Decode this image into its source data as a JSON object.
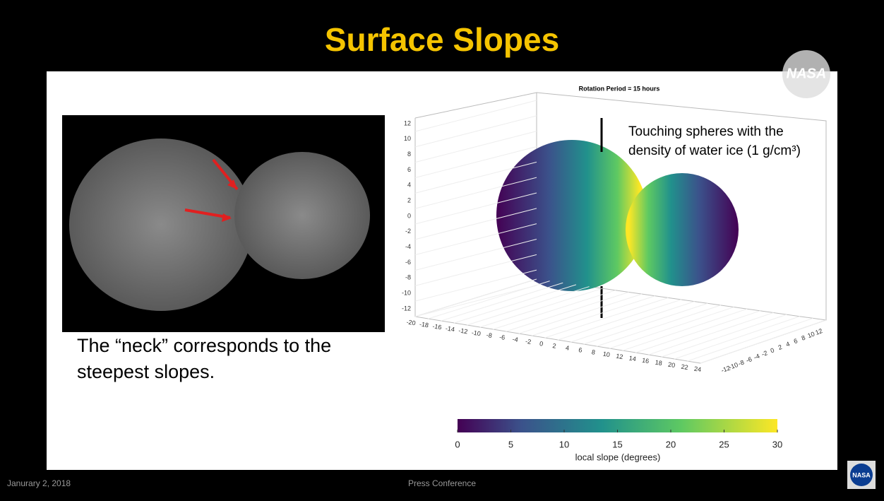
{
  "header": {
    "title": "Surface Slopes",
    "logo": "NASA"
  },
  "left": {
    "caption": [
      "The “neck” corresponds to the",
      "steepest slopes."
    ]
  },
  "plot": {
    "title": "Rotation Period = 15 hours",
    "annotation": [
      "Touching spheres with the",
      "density of water ice (1 g/cm³)"
    ],
    "zticks": [
      12,
      10,
      8,
      6,
      4,
      2,
      0,
      -2,
      -4,
      -6,
      -8,
      -10,
      -12
    ],
    "xticks": [
      -20,
      -18,
      -16,
      -14,
      -12,
      -10,
      -8,
      -6,
      -4,
      -2,
      0,
      2,
      4,
      6,
      8,
      10,
      12,
      14,
      16,
      18,
      20,
      22,
      24
    ],
    "yticks": [
      -12,
      -10,
      -8,
      -6,
      -4,
      -2,
      0,
      2,
      4,
      6,
      8,
      10,
      12
    ]
  },
  "colorbar": {
    "ticks": [
      0,
      5,
      10,
      15,
      20,
      25,
      30
    ],
    "range": [
      0,
      30
    ],
    "label": "local slope (degrees)"
  },
  "footer": {
    "date": "Janurary 2, 2018",
    "event": "Press Conference",
    "logo": "NASA"
  }
}
